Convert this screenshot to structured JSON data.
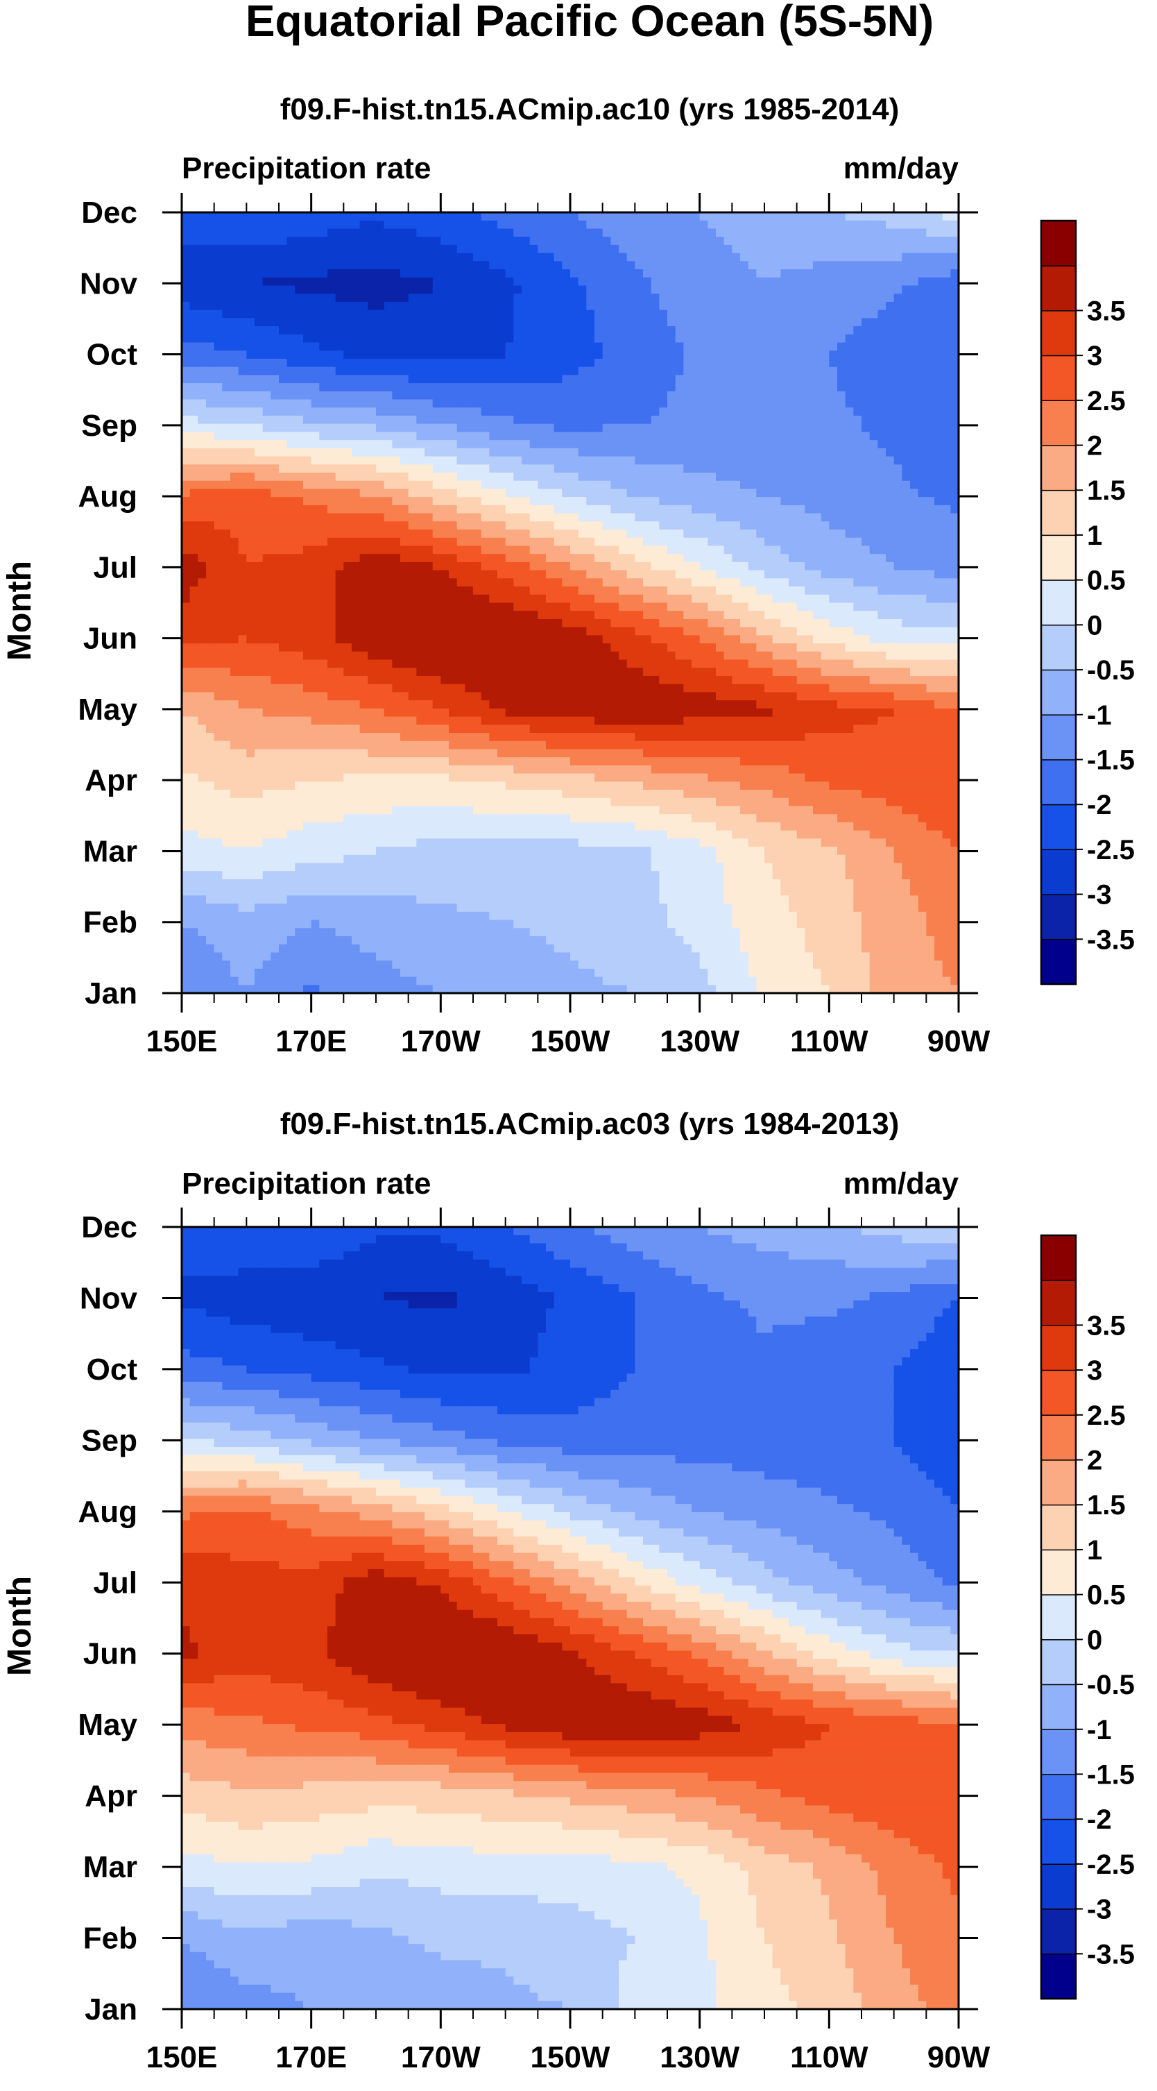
{
  "title": "Equatorial Pacific Ocean (5S-5N)",
  "colorbar": {
    "levels": [
      -3.5,
      -3,
      -2.5,
      -2,
      -1.5,
      -1,
      -0.5,
      0,
      0.5,
      1,
      1.5,
      2,
      2.5,
      3,
      3.5
    ],
    "labels": [
      "-3.5",
      "-3",
      "-2.5",
      "-2",
      "-1.5",
      "-1",
      "-0.5",
      "0",
      "0.5",
      "1",
      "1.5",
      "2",
      "2.5",
      "3",
      "3.5"
    ],
    "colors": [
      "#00008c",
      "#0a23a8",
      "#0a3ccf",
      "#1752e8",
      "#3f70f0",
      "#6a93f5",
      "#91b2fa",
      "#b5cdfb",
      "#dbe9fd",
      "#fdebd6",
      "#fdd2b3",
      "#fbab83",
      "#f8804e",
      "#f45726",
      "#de3a0d",
      "#b31b05",
      "#8a0000"
    ]
  },
  "chart_data": [
    {
      "type": "heatmap",
      "subtitle": "f09.F-hist.tn15.ACmip.ac10 (yrs 1985-2014)",
      "left_string": "Precipitation rate",
      "right_string": "mm/day",
      "ylabel": "Month",
      "x_ticks": [
        "150E",
        "170E",
        "170W",
        "150W",
        "130W",
        "110W",
        "90W"
      ],
      "y_ticks": [
        "Jan",
        "Feb",
        "Mar",
        "Apr",
        "May",
        "Jun",
        "Jul",
        "Aug",
        "Sep",
        "Oct",
        "Nov",
        "Dec"
      ],
      "x_range": [
        150,
        270
      ],
      "x_units": "longitude (degrees east)",
      "x_nodes": [
        150,
        160,
        170,
        180,
        190,
        200,
        210,
        220,
        230,
        240,
        250,
        260,
        270
      ],
      "z_months_by_row": [
        [
          -1.5,
          -1.0,
          -1.6,
          -1.2,
          -1.0,
          -0.8,
          -0.6,
          -0.5,
          -0.2,
          0.6,
          1.0,
          1.8,
          2.0
        ],
        [
          -1.0,
          -0.7,
          -1.0,
          -0.8,
          -0.6,
          -0.5,
          -0.4,
          -0.2,
          0.2,
          0.8,
          1.2,
          1.8,
          2.2
        ],
        [
          0.3,
          0.5,
          0.2,
          0.0,
          -0.2,
          -0.2,
          -0.2,
          -0.1,
          0.3,
          1.0,
          1.4,
          2.0,
          2.5
        ],
        [
          0.9,
          1.2,
          1.0,
          0.9,
          0.9,
          1.1,
          1.3,
          1.6,
          1.9,
          2.2,
          2.6,
          2.8,
          3.0
        ],
        [
          1.5,
          2.0,
          2.2,
          2.5,
          3.0,
          3.6,
          3.9,
          3.9,
          3.8,
          3.6,
          3.2,
          3.0,
          2.5
        ],
        [
          3.2,
          3.0,
          3.3,
          3.9,
          4.2,
          4.2,
          3.8,
          3.2,
          2.5,
          1.6,
          0.8,
          0.3,
          0.2
        ],
        [
          3.8,
          3.0,
          3.2,
          3.9,
          3.5,
          2.8,
          2.0,
          1.2,
          0.5,
          -0.2,
          -0.7,
          -1.0,
          -1.2
        ],
        [
          2.6,
          2.8,
          2.4,
          2.0,
          1.3,
          0.6,
          0.0,
          -0.5,
          -0.8,
          -1.0,
          -1.2,
          -1.4,
          -1.6
        ],
        [
          0.2,
          0.0,
          -0.4,
          -0.6,
          -1.0,
          -1.4,
          -1.6,
          -1.5,
          -1.4,
          -1.4,
          -1.4,
          -1.6,
          -2.0
        ],
        [
          -1.8,
          -2.0,
          -2.4,
          -2.6,
          -2.7,
          -2.5,
          -2.2,
          -1.8,
          -1.4,
          -1.2,
          -1.5,
          -1.8,
          -2.0
        ],
        [
          -2.8,
          -3.0,
          -3.1,
          -3.2,
          -3.0,
          -2.6,
          -2.1,
          -1.6,
          -1.2,
          -1.0,
          -1.2,
          -1.4,
          -1.8
        ],
        [
          -2.2,
          -2.0,
          -2.2,
          -2.4,
          -2.2,
          -1.8,
          -1.5,
          -1.2,
          -1.0,
          -0.8,
          -0.5,
          -0.3,
          0.2
        ]
      ]
    },
    {
      "type": "heatmap",
      "subtitle": "f09.F-hist.tn15.ACmip.ac03 (yrs 1984-2013)",
      "left_string": "Precipitation rate",
      "right_string": "mm/day",
      "ylabel": "Month",
      "x_ticks": [
        "150E",
        "170E",
        "170W",
        "150W",
        "130W",
        "110W",
        "90W"
      ],
      "y_ticks": [
        "Jan",
        "Feb",
        "Mar",
        "Apr",
        "May",
        "Jun",
        "Jul",
        "Aug",
        "Sep",
        "Oct",
        "Nov",
        "Dec"
      ],
      "x_range": [
        150,
        270
      ],
      "x_units": "longitude (degrees east)",
      "x_nodes": [
        150,
        160,
        170,
        180,
        190,
        200,
        210,
        220,
        230,
        240,
        250,
        260,
        270
      ],
      "z_months_by_row": [
        [
          -1.5,
          -1.2,
          -1.0,
          -0.8,
          -0.8,
          -0.6,
          -0.5,
          0.2,
          0.4,
          0.8,
          1.2,
          1.8,
          2.2
        ],
        [
          -1.0,
          -0.6,
          -0.8,
          -0.6,
          -0.4,
          -0.4,
          -0.2,
          0.0,
          0.4,
          1.0,
          1.4,
          2.0,
          2.4
        ],
        [
          0.3,
          0.5,
          0.4,
          0.1,
          0.2,
          0.3,
          0.2,
          0.4,
          0.6,
          1.2,
          1.6,
          2.2,
          2.6
        ],
        [
          1.2,
          1.4,
          1.3,
          1.2,
          1.2,
          1.4,
          1.6,
          1.8,
          2.0,
          2.4,
          2.7,
          2.9,
          3.0
        ],
        [
          2.2,
          2.4,
          2.6,
          2.8,
          3.2,
          3.6,
          3.9,
          4.0,
          3.8,
          3.4,
          3.0,
          2.8,
          2.5
        ],
        [
          3.6,
          3.2,
          3.4,
          4.0,
          4.2,
          4.1,
          3.6,
          3.0,
          2.4,
          1.6,
          0.8,
          0.2,
          0.0
        ],
        [
          3.4,
          3.2,
          3.2,
          3.8,
          3.4,
          2.6,
          1.8,
          1.0,
          0.3,
          -0.3,
          -0.8,
          -1.2,
          -1.6
        ],
        [
          2.4,
          2.6,
          2.2,
          1.8,
          1.2,
          0.5,
          -0.1,
          -0.6,
          -1.0,
          -1.2,
          -1.4,
          -1.6,
          -2.0
        ],
        [
          0.0,
          -0.2,
          -0.6,
          -1.0,
          -1.3,
          -1.6,
          -1.8,
          -1.8,
          -1.7,
          -1.8,
          -1.8,
          -2.0,
          -2.4
        ],
        [
          -1.8,
          -2.0,
          -2.2,
          -2.4,
          -2.6,
          -2.6,
          -2.3,
          -2.0,
          -1.8,
          -1.6,
          -1.8,
          -2.0,
          -2.4
        ],
        [
          -2.6,
          -2.8,
          -2.9,
          -3.0,
          -3.1,
          -2.8,
          -2.4,
          -2.0,
          -1.6,
          -1.4,
          -1.4,
          -1.6,
          -2.0
        ],
        [
          -2.2,
          -2.0,
          -2.0,
          -2.4,
          -2.4,
          -2.0,
          -1.6,
          -1.2,
          -1.0,
          -0.8,
          -0.6,
          -0.3,
          0.0
        ]
      ]
    }
  ]
}
